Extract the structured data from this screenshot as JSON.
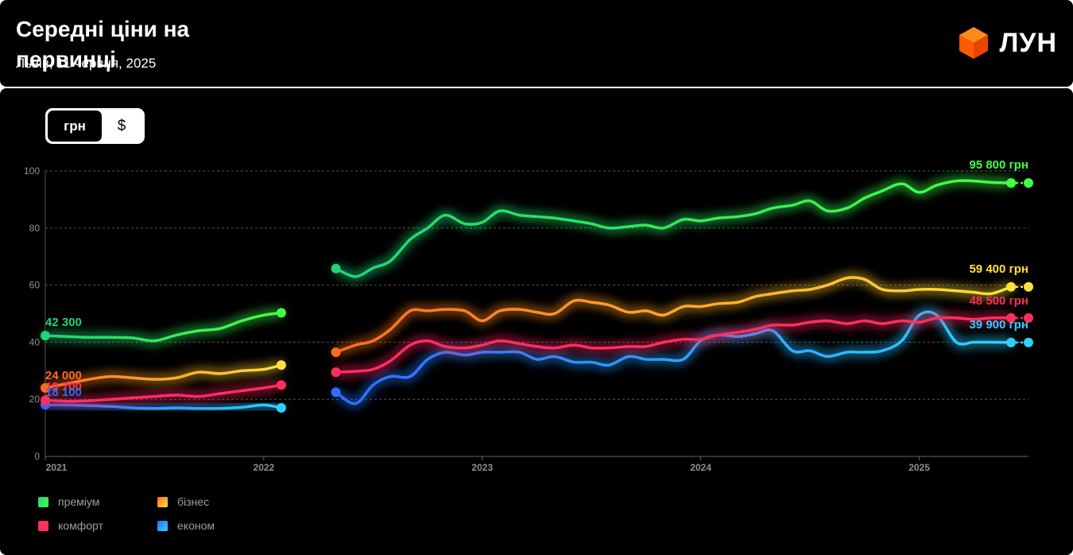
{
  "header": {
    "title": "Середні ціни на первинці",
    "subtitle": "Львів, 11 червня, 2025",
    "logo_text": "ЛУН"
  },
  "currency_toggle": {
    "options": [
      "грн",
      "$"
    ],
    "selected": "грн"
  },
  "chart_data": {
    "type": "line",
    "ylim": [
      0,
      100
    ],
    "yticks": [
      0,
      20,
      40,
      60,
      80,
      100
    ],
    "xlim": [
      2021.0,
      2025.5
    ],
    "xticks": [
      "2021",
      "2022",
      "2023",
      "2024",
      "2025"
    ],
    "grid": true,
    "legend_position": "bottom-left",
    "series": [
      {
        "name": "преміум",
        "color": "#22e05a",
        "gradient": [
          "#1fd37a",
          "#44ff44"
        ],
        "segments": [
          [
            [
              2021.0,
              42.3
            ],
            [
              2021.1,
              42
            ],
            [
              2021.2,
              41.7
            ],
            [
              2021.3,
              41.7
            ],
            [
              2021.4,
              41.5
            ],
            [
              2021.5,
              40.5
            ],
            [
              2021.6,
              42.5
            ],
            [
              2021.7,
              44
            ],
            [
              2021.8,
              44.8
            ],
            [
              2021.9,
              47.5
            ],
            [
              2022.0,
              49.5
            ],
            [
              2022.08,
              50.3
            ]
          ],
          [
            [
              2022.33,
              65.8
            ],
            [
              2022.42,
              63
            ],
            [
              2022.5,
              66
            ],
            [
              2022.58,
              68.5
            ],
            [
              2022.67,
              76
            ],
            [
              2022.75,
              80
            ],
            [
              2022.83,
              84.5
            ],
            [
              2022.92,
              81.5
            ],
            [
              2023.0,
              82
            ],
            [
              2023.08,
              86
            ],
            [
              2023.17,
              84.5
            ],
            [
              2023.25,
              84
            ],
            [
              2023.33,
              83.5
            ],
            [
              2023.42,
              82.5
            ],
            [
              2023.5,
              81.5
            ],
            [
              2023.58,
              80
            ],
            [
              2023.67,
              80.5
            ],
            [
              2023.75,
              81
            ],
            [
              2023.83,
              80
            ],
            [
              2023.92,
              83
            ],
            [
              2024.0,
              82.5
            ],
            [
              2024.08,
              83.5
            ],
            [
              2024.17,
              84
            ],
            [
              2024.25,
              85
            ],
            [
              2024.33,
              87
            ],
            [
              2024.42,
              88
            ],
            [
              2024.5,
              89.5
            ],
            [
              2024.58,
              86
            ],
            [
              2024.67,
              87
            ],
            [
              2024.75,
              90.5
            ],
            [
              2024.83,
              93
            ],
            [
              2024.92,
              95.5
            ],
            [
              2025.0,
              92.5
            ],
            [
              2025.08,
              95
            ],
            [
              2025.17,
              96.5
            ],
            [
              2025.25,
              96.5
            ],
            [
              2025.33,
              96
            ],
            [
              2025.42,
              95.8
            ]
          ]
        ],
        "last_value": 95.8,
        "label": "95 800 грн",
        "start_label": "42 300"
      },
      {
        "name": "бізнес",
        "color": "#ff7a1f",
        "gradient": [
          "#ff6b1f",
          "#ffe13a"
        ],
        "segments": [
          [
            [
              2021.0,
              24
            ],
            [
              2021.1,
              25.5
            ],
            [
              2021.2,
              27
            ],
            [
              2021.3,
              28
            ],
            [
              2021.4,
              27.5
            ],
            [
              2021.5,
              27
            ],
            [
              2021.6,
              27.5
            ],
            [
              2021.7,
              29.5
            ],
            [
              2021.8,
              29
            ],
            [
              2021.9,
              30
            ],
            [
              2022.0,
              30.5
            ],
            [
              2022.08,
              32
            ]
          ],
          [
            [
              2022.33,
              36.5
            ],
            [
              2022.42,
              39
            ],
            [
              2022.5,
              40.5
            ],
            [
              2022.58,
              44.5
            ],
            [
              2022.67,
              51
            ],
            [
              2022.75,
              51
            ],
            [
              2022.83,
              51.5
            ],
            [
              2022.92,
              51
            ],
            [
              2023.0,
              47.5
            ],
            [
              2023.08,
              51
            ],
            [
              2023.17,
              51.5
            ],
            [
              2023.25,
              50.5
            ],
            [
              2023.33,
              50
            ],
            [
              2023.42,
              54.5
            ],
            [
              2023.5,
              54
            ],
            [
              2023.58,
              53
            ],
            [
              2023.67,
              50.5
            ],
            [
              2023.75,
              51
            ],
            [
              2023.83,
              49.5
            ],
            [
              2023.92,
              52.5
            ],
            [
              2024.0,
              52.5
            ],
            [
              2024.08,
              53.5
            ],
            [
              2024.17,
              54
            ],
            [
              2024.25,
              56
            ],
            [
              2024.33,
              57
            ],
            [
              2024.42,
              58
            ],
            [
              2024.5,
              58.5
            ],
            [
              2024.58,
              60
            ],
            [
              2024.67,
              62.5
            ],
            [
              2024.75,
              62
            ],
            [
              2024.83,
              58.5
            ],
            [
              2024.92,
              58
            ],
            [
              2025.0,
              58.5
            ],
            [
              2025.08,
              58.5
            ],
            [
              2025.17,
              58
            ],
            [
              2025.25,
              57.5
            ],
            [
              2025.33,
              57
            ],
            [
              2025.42,
              59.4
            ]
          ]
        ],
        "last_value": 59.4,
        "label": "59 400 грн",
        "start_label": "24 000"
      },
      {
        "name": "комфорт",
        "color": "#ff2f5e",
        "gradient": [
          "#ff2f5e",
          "#ff2f5e"
        ],
        "segments": [
          [
            [
              2021.0,
              19.7
            ],
            [
              2021.1,
              19.3
            ],
            [
              2021.2,
              19.5
            ],
            [
              2021.3,
              20
            ],
            [
              2021.4,
              20.5
            ],
            [
              2021.5,
              21
            ],
            [
              2021.6,
              21.5
            ],
            [
              2021.7,
              21
            ],
            [
              2021.8,
              22
            ],
            [
              2021.9,
              23
            ],
            [
              2022.0,
              24
            ],
            [
              2022.08,
              25
            ]
          ],
          [
            [
              2022.33,
              29.5
            ],
            [
              2022.42,
              29.8
            ],
            [
              2022.5,
              30.5
            ],
            [
              2022.58,
              33.5
            ],
            [
              2022.67,
              39
            ],
            [
              2022.75,
              40.5
            ],
            [
              2022.83,
              38.5
            ],
            [
              2022.92,
              38
            ],
            [
              2023.0,
              39
            ],
            [
              2023.08,
              40.5
            ],
            [
              2023.17,
              39.5
            ],
            [
              2023.25,
              38.5
            ],
            [
              2023.33,
              38
            ],
            [
              2023.42,
              39
            ],
            [
              2023.5,
              38
            ],
            [
              2023.58,
              38
            ],
            [
              2023.67,
              38.5
            ],
            [
              2023.75,
              38.5
            ],
            [
              2023.83,
              40
            ],
            [
              2023.92,
              41
            ],
            [
              2024.0,
              41
            ],
            [
              2024.08,
              42.5
            ],
            [
              2024.17,
              43.5
            ],
            [
              2024.25,
              44.5
            ],
            [
              2024.33,
              46
            ],
            [
              2024.42,
              46
            ],
            [
              2024.5,
              47
            ],
            [
              2024.58,
              47.5
            ],
            [
              2024.67,
              46.5
            ],
            [
              2024.75,
              47.5
            ],
            [
              2024.83,
              46.5
            ],
            [
              2024.92,
              47.5
            ],
            [
              2025.0,
              47
            ],
            [
              2025.08,
              48.5
            ],
            [
              2025.17,
              48.5
            ],
            [
              2025.25,
              48
            ],
            [
              2025.33,
              48.5
            ],
            [
              2025.42,
              48.5
            ]
          ]
        ],
        "last_value": 48.5,
        "label": "48 500 грн",
        "start_label": "19 700"
      },
      {
        "name": "економ",
        "color": "#3aa8ff",
        "gradient": [
          "#2f6dff",
          "#2fd0ff"
        ],
        "segments": [
          [
            [
              2021.0,
              18.1
            ],
            [
              2021.1,
              18
            ],
            [
              2021.2,
              17.8
            ],
            [
              2021.3,
              17.5
            ],
            [
              2021.4,
              17
            ],
            [
              2021.5,
              16.8
            ],
            [
              2021.6,
              17
            ],
            [
              2021.7,
              16.8
            ],
            [
              2021.8,
              16.8
            ],
            [
              2021.9,
              17.2
            ],
            [
              2022.0,
              18
            ],
            [
              2022.08,
              17
            ]
          ],
          [
            [
              2022.33,
              22.5
            ],
            [
              2022.42,
              18.5
            ],
            [
              2022.5,
              25
            ],
            [
              2022.58,
              28
            ],
            [
              2022.67,
              28
            ],
            [
              2022.75,
              34
            ],
            [
              2022.83,
              36.5
            ],
            [
              2022.92,
              35.5
            ],
            [
              2023.0,
              36.5
            ],
            [
              2023.08,
              36.5
            ],
            [
              2023.17,
              36.5
            ],
            [
              2023.25,
              34
            ],
            [
              2023.33,
              35
            ],
            [
              2023.42,
              33
            ],
            [
              2023.5,
              33
            ],
            [
              2023.58,
              32
            ],
            [
              2023.67,
              35
            ],
            [
              2023.75,
              34
            ],
            [
              2023.83,
              34
            ],
            [
              2023.92,
              34
            ],
            [
              2024.0,
              40.5
            ],
            [
              2024.08,
              42.5
            ],
            [
              2024.17,
              42
            ],
            [
              2024.25,
              43
            ],
            [
              2024.33,
              44
            ],
            [
              2024.42,
              37
            ],
            [
              2024.5,
              37
            ],
            [
              2024.58,
              35
            ],
            [
              2024.67,
              36.5
            ],
            [
              2024.75,
              36.5
            ],
            [
              2024.83,
              37
            ],
            [
              2024.92,
              40.5
            ],
            [
              2025.0,
              49.5
            ],
            [
              2025.08,
              49.5
            ],
            [
              2025.17,
              40
            ],
            [
              2025.25,
              40
            ],
            [
              2025.33,
              40
            ],
            [
              2025.42,
              39.9
            ]
          ]
        ],
        "last_value": 39.9,
        "label": "39 900 грн",
        "start_label": "18 100"
      }
    ]
  }
}
